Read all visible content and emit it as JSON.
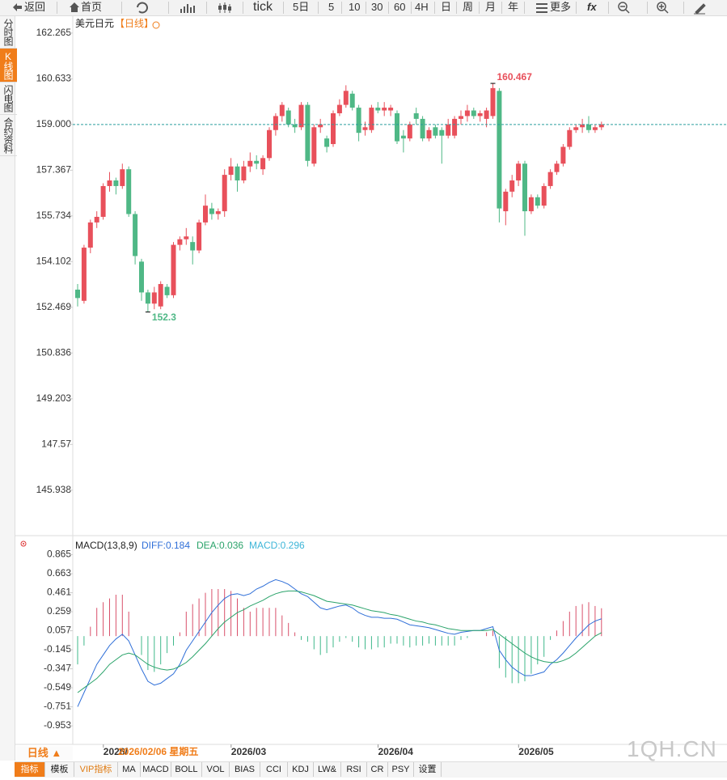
{
  "toolbar": {
    "items": [
      "返回",
      "首页",
      "tick",
      "5日",
      "5",
      "10",
      "30",
      "60",
      "4H",
      "日",
      "周",
      "月",
      "年",
      "更多",
      "fx"
    ]
  },
  "sidebar": [
    "分时图",
    "K线图",
    "闪电图",
    "合约资料"
  ],
  "chart_data": [
    {
      "type": "candlestick",
      "title": "美元日元",
      "subtitle": "【日线】",
      "up_color": "#e8505b",
      "down_color": "#4fb886",
      "open": [
        153.1,
        152.7,
        154.6,
        155.5,
        155.7,
        156.8,
        157.0,
        156.8,
        157.4,
        155.8,
        154.1,
        153.0,
        152.6,
        152.5,
        153.2,
        152.9,
        154.7,
        154.9,
        154.8,
        154.5,
        155.5,
        156.0,
        155.8,
        155.9,
        157.2,
        157.5,
        157.0,
        157.5,
        157.7,
        157.4,
        157.8,
        158.8,
        159.3,
        159.5,
        159.0,
        158.9,
        159.7,
        157.6,
        158.9,
        158.5,
        158.3,
        159.4,
        159.7,
        160.1,
        159.6,
        158.8,
        158.8,
        159.6,
        159.5,
        159.5,
        159.4,
        158.6,
        158.5,
        159.4,
        159.2,
        158.5,
        158.9,
        158.8,
        158.6,
        158.6,
        159.2,
        159.3,
        159.5,
        159.3,
        159.2,
        159.3,
        160.2,
        155.9,
        156.6,
        157.0,
        157.6,
        155.9,
        156.4,
        156.1,
        156.8,
        157.3,
        157.6,
        158.2,
        158.8,
        158.9,
        159.0,
        158.8,
        158.9
      ],
      "high": [
        153.3,
        154.7,
        155.6,
        155.9,
        156.9,
        157.3,
        157.1,
        157.6,
        157.5,
        155.9,
        154.2,
        153.1,
        153.2,
        153.4,
        153.3,
        154.8,
        155.0,
        155.3,
        155.0,
        155.6,
        156.5,
        156.2,
        156.0,
        157.4,
        157.8,
        157.6,
        157.7,
        158.0,
        157.9,
        157.9,
        158.9,
        159.4,
        159.8,
        159.6,
        159.2,
        159.8,
        159.8,
        159.0,
        159.2,
        158.6,
        159.5,
        159.9,
        160.4,
        160.2,
        159.7,
        159.1,
        159.7,
        159.8,
        159.8,
        159.7,
        159.5,
        158.8,
        159.1,
        159.6,
        159.3,
        158.9,
        159.0,
        158.9,
        159.2,
        159.3,
        159.5,
        159.7,
        159.6,
        159.5,
        159.6,
        160.467,
        160.3,
        156.7,
        157.2,
        157.7,
        157.7,
        156.5,
        156.5,
        156.9,
        157.4,
        157.7,
        158.3,
        158.9,
        159.0,
        159.2,
        159.3,
        159.0,
        159.1
      ],
      "low": [
        152.5,
        152.6,
        154.4,
        155.3,
        155.6,
        156.6,
        156.5,
        156.7,
        155.7,
        154.0,
        152.7,
        152.3,
        152.4,
        152.4,
        152.8,
        152.8,
        154.5,
        154.7,
        154.0,
        154.4,
        155.4,
        155.6,
        155.6,
        155.7,
        157.0,
        156.6,
        156.9,
        157.3,
        157.4,
        157.2,
        157.7,
        158.6,
        159.1,
        158.9,
        158.7,
        158.8,
        157.5,
        157.5,
        158.7,
        158.0,
        158.2,
        159.3,
        159.6,
        159.5,
        158.4,
        158.6,
        158.7,
        159.4,
        159.3,
        159.3,
        158.3,
        158.0,
        158.4,
        159.0,
        158.4,
        158.4,
        158.5,
        157.6,
        158.5,
        158.5,
        159.0,
        159.1,
        159.2,
        159.1,
        158.9,
        159.2,
        155.5,
        155.4,
        156.4,
        156.8,
        155.025,
        155.8,
        156.0,
        156.0,
        156.7,
        157.2,
        157.5,
        158.1,
        158.7,
        158.7,
        158.7,
        158.7,
        158.8
      ],
      "close": [
        152.8,
        154.6,
        155.5,
        155.7,
        156.8,
        157.0,
        156.8,
        157.4,
        155.8,
        154.3,
        153.0,
        152.6,
        153.0,
        153.3,
        152.9,
        154.7,
        154.9,
        155.0,
        154.5,
        155.5,
        156.1,
        155.8,
        155.9,
        157.2,
        157.5,
        157.0,
        157.5,
        157.7,
        157.6,
        157.8,
        158.8,
        159.3,
        159.7,
        159.0,
        158.9,
        159.7,
        157.7,
        158.9,
        159.0,
        158.2,
        159.4,
        159.7,
        160.2,
        159.6,
        158.7,
        158.9,
        159.6,
        159.5,
        159.6,
        159.6,
        158.4,
        158.5,
        159.0,
        159.2,
        158.5,
        158.8,
        158.6,
        158.6,
        159.0,
        159.2,
        159.3,
        159.5,
        159.3,
        159.4,
        159.5,
        160.3,
        156.0,
        156.6,
        157.0,
        157.6,
        155.9,
        156.4,
        156.1,
        156.8,
        157.3,
        157.6,
        158.2,
        158.8,
        158.9,
        159.0,
        158.8,
        158.9,
        159.0
      ],
      "ylim": [
        144.37,
        162.81
      ],
      "yticks": [
        162.265,
        160.633,
        {
          "value": 159,
          "label": "159.000"
        },
        157.367,
        155.734,
        154.102,
        152.469,
        150.836,
        149.203,
        147.57,
        145.938
      ],
      "xlim": [
        -0.8,
        97.6
      ],
      "xticks": [
        {
          "value": 2,
          "label": "2026/"
        },
        {
          "value": 22,
          "label": "2026/03"
        },
        {
          "value": 45,
          "label": "2026/04"
        },
        {
          "value": 67,
          "label": "2026/05"
        }
      ],
      "cursor_label": "2026/02/06 星期五"
    },
    {
      "type": "macd",
      "title": "MACD(13,8,9)",
      "series": [
        {
          "name": "DIFF:0.184",
          "color": "#2f6fd8",
          "values": [
            -0.75,
            -0.6,
            -0.45,
            -0.3,
            -0.2,
            -0.1,
            -0.03,
            0.02,
            -0.05,
            -0.2,
            -0.35,
            -0.48,
            -0.52,
            -0.5,
            -0.45,
            -0.4,
            -0.3,
            -0.15,
            -0.05,
            0.05,
            0.15,
            0.25,
            0.33,
            0.4,
            0.44,
            0.45,
            0.43,
            0.45,
            0.5,
            0.53,
            0.57,
            0.6,
            0.58,
            0.55,
            0.5,
            0.45,
            0.42,
            0.36,
            0.3,
            0.28,
            0.3,
            0.32,
            0.33,
            0.3,
            0.25,
            0.22,
            0.2,
            0.2,
            0.19,
            0.19,
            0.18,
            0.15,
            0.12,
            0.11,
            0.1,
            0.09,
            0.07,
            0.05,
            0.03,
            0.02,
            0.04,
            0.05,
            0.06,
            0.06,
            0.08,
            0.1,
            -0.15,
            -0.25,
            -0.33,
            -0.38,
            -0.42,
            -0.42,
            -0.4,
            -0.38,
            -0.3,
            -0.25,
            -0.18,
            -0.1,
            -0.02,
            0.05,
            0.12,
            0.16,
            0.184
          ]
        },
        {
          "name": "DEA:0.036",
          "color": "#2aa36a",
          "values": [
            -0.6,
            -0.55,
            -0.5,
            -0.45,
            -0.38,
            -0.3,
            -0.25,
            -0.2,
            -0.18,
            -0.2,
            -0.25,
            -0.3,
            -0.33,
            -0.35,
            -0.36,
            -0.35,
            -0.32,
            -0.28,
            -0.22,
            -0.15,
            -0.08,
            0.0,
            0.08,
            0.15,
            0.2,
            0.25,
            0.28,
            0.32,
            0.35,
            0.38,
            0.42,
            0.45,
            0.47,
            0.48,
            0.48,
            0.47,
            0.45,
            0.43,
            0.4,
            0.37,
            0.36,
            0.35,
            0.34,
            0.33,
            0.31,
            0.29,
            0.27,
            0.26,
            0.25,
            0.23,
            0.22,
            0.2,
            0.18,
            0.16,
            0.15,
            0.13,
            0.12,
            0.1,
            0.08,
            0.07,
            0.06,
            0.06,
            0.06,
            0.06,
            0.06,
            0.07,
            0.02,
            -0.03,
            -0.08,
            -0.13,
            -0.18,
            -0.22,
            -0.25,
            -0.27,
            -0.28,
            -0.28,
            -0.26,
            -0.23,
            -0.18,
            -0.12,
            -0.06,
            0.0,
            0.036
          ]
        },
        {
          "name": "MACD:0.296",
          "color": "#3db5d8",
          "values": [
            -0.3,
            -0.1,
            0.1,
            0.3,
            0.36,
            0.4,
            0.44,
            0.44,
            0.26,
            0.0,
            -0.2,
            -0.36,
            -0.38,
            -0.3,
            -0.18,
            -0.1,
            0.04,
            0.26,
            0.34,
            0.4,
            0.46,
            0.5,
            0.5,
            0.5,
            0.48,
            0.4,
            0.3,
            0.26,
            0.3,
            0.3,
            0.3,
            0.3,
            0.22,
            0.14,
            0.04,
            -0.04,
            -0.06,
            -0.14,
            -0.2,
            -0.18,
            -0.12,
            -0.06,
            -0.02,
            -0.06,
            -0.12,
            -0.14,
            -0.14,
            -0.12,
            -0.12,
            -0.08,
            -0.08,
            -0.1,
            -0.12,
            -0.1,
            -0.1,
            -0.08,
            -0.1,
            -0.1,
            -0.1,
            -0.1,
            -0.04,
            -0.02,
            0.0,
            0.0,
            0.04,
            0.06,
            -0.34,
            -0.44,
            -0.5,
            -0.5,
            -0.48,
            -0.4,
            -0.3,
            -0.22,
            -0.04,
            0.06,
            0.16,
            0.26,
            0.32,
            0.34,
            0.36,
            0.32,
            0.296
          ]
        }
      ],
      "ylim": [
        -1.15,
        1.05
      ],
      "yticks": [
        0.865,
        0.663,
        0.461,
        0.259,
        0.057,
        -0.145,
        -0.347,
        -0.549,
        -0.751,
        -0.953
      ]
    }
  ],
  "period_button": "日线 ▲",
  "tabs": [
    "指标",
    "模板",
    "VIP指标",
    "MA",
    "MACD",
    "BOLL",
    "VOL",
    "BIAS",
    "CCI",
    "KDJ",
    "LW&",
    "RSI",
    "CR",
    "PSY",
    "设置"
  ],
  "watermark": "1QH.CN"
}
